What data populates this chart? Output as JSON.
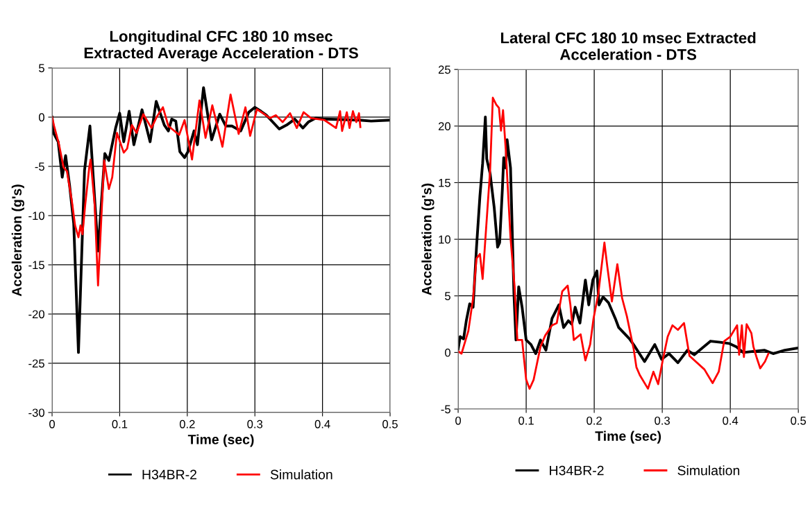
{
  "chart_data": [
    {
      "type": "line",
      "title": "Longitudinal CFC 180 10 msec\nExtracted Average Acceleration - DTS",
      "xlabel": "Time (sec)",
      "ylabel": "Acceleration (g's)",
      "xlim": [
        0,
        0.5
      ],
      "xticks": [
        0,
        0.1,
        0.2,
        0.3,
        0.4,
        0.5
      ],
      "ylim": [
        -30,
        5
      ],
      "yticks": [
        -30,
        -25,
        -20,
        -15,
        -10,
        -5,
        0,
        5
      ],
      "grid": true,
      "legend": "bottom",
      "marker": "none",
      "line_style": "solid",
      "series": [
        {
          "name": "H34BR-2",
          "color": "#000000",
          "x": [
            0,
            0.002,
            0.009,
            0.015,
            0.02,
            0.026,
            0.032,
            0.039,
            0.048,
            0.056,
            0.068,
            0.078,
            0.084,
            0.094,
            0.1,
            0.106,
            0.114,
            0.121,
            0.133,
            0.145,
            0.154,
            0.166,
            0.172,
            0.177,
            0.183,
            0.189,
            0.196,
            0.201,
            0.21,
            0.215,
            0.224,
            0.236,
            0.248,
            0.257,
            0.266,
            0.279,
            0.291,
            0.3,
            0.309,
            0.317,
            0.336,
            0.347,
            0.359,
            0.371,
            0.379,
            0.39,
            0.403,
            0.455,
            0.472,
            0.5
          ],
          "values": [
            0,
            -1.6,
            -2.5,
            -6.1,
            -3.9,
            -7.0,
            -10.8,
            -23.9,
            -5.4,
            -0.9,
            -13.6,
            -3.7,
            -4.4,
            -1.1,
            0.4,
            -2.5,
            0.6,
            -2.8,
            0.75,
            -2.5,
            1.6,
            -0.8,
            -1.4,
            -0.2,
            -0.4,
            -3.5,
            -4.1,
            -3.5,
            -1.4,
            -2.8,
            3.0,
            -2.3,
            0.3,
            -0.9,
            -0.9,
            -1.4,
            0.5,
            1.0,
            0.6,
            0.2,
            -1.2,
            -0.8,
            -0.2,
            -1.1,
            -0.5,
            -0.1,
            -0.2,
            -0.3,
            -0.4,
            -0.3
          ]
        },
        {
          "name": "Simulation",
          "color": "#ff0000",
          "x": [
            0,
            0.003,
            0.01,
            0.017,
            0.022,
            0.029,
            0.034,
            0.039,
            0.042,
            0.045,
            0.049,
            0.055,
            0.057,
            0.063,
            0.068,
            0.077,
            0.084,
            0.089,
            0.096,
            0.106,
            0.111,
            0.118,
            0.125,
            0.135,
            0.147,
            0.155,
            0.164,
            0.172,
            0.188,
            0.196,
            0.207,
            0.218,
            0.227,
            0.237,
            0.252,
            0.264,
            0.276,
            0.286,
            0.293,
            0.303,
            0.314,
            0.322,
            0.331,
            0.341,
            0.352,
            0.362,
            0.372,
            0.383,
            0.403,
            0.42,
            0.426,
            0.429,
            0.436,
            0.44,
            0.445,
            0.45,
            0.454,
            0.456
          ],
          "values": [
            0,
            -0.9,
            -2.7,
            -5.1,
            -5.5,
            -8.4,
            -11.0,
            -12.2,
            -11.0,
            -11.9,
            -8.9,
            -5.1,
            -4.3,
            -8.9,
            -17.1,
            -4.4,
            -7.3,
            -6.1,
            -1.6,
            -3.6,
            -3.2,
            -0.8,
            -1.6,
            0.3,
            -1.1,
            0.05,
            1.0,
            -0.9,
            -1.8,
            -0.3,
            -4.3,
            1.7,
            -2.1,
            1.2,
            -3.0,
            2.3,
            -1.7,
            1.0,
            -1.9,
            0.8,
            0.3,
            -0.1,
            0.2,
            -0.5,
            0.4,
            -1.1,
            0.5,
            -0.1,
            -0.3,
            -1.1,
            0.6,
            -1.4,
            0.5,
            -1.1,
            0.6,
            -0.5,
            0.4,
            -1.0
          ]
        }
      ]
    },
    {
      "type": "line",
      "title": "Lateral CFC 180 10 msec Extracted\nAcceleration - DTS",
      "xlabel": "Time (sec)",
      "ylabel": "Acceleration (g's)",
      "xlim": [
        0,
        0.5
      ],
      "xticks": [
        0,
        0.1,
        0.2,
        0.3,
        0.4,
        0.5
      ],
      "ylim": [
        -5,
        25
      ],
      "yticks": [
        -5,
        0,
        5,
        10,
        15,
        20,
        25
      ],
      "grid": true,
      "legend": "bottom",
      "marker": "none",
      "line_style": "solid",
      "series": [
        {
          "name": "H34BR-2",
          "color": "#000000",
          "x": [
            0,
            0.003,
            0.008,
            0.012,
            0.017,
            0.022,
            0.027,
            0.032,
            0.036,
            0.04,
            0.042,
            0.047,
            0.053,
            0.058,
            0.061,
            0.065,
            0.067,
            0.07,
            0.072,
            0.077,
            0.082,
            0.085,
            0.089,
            0.094,
            0.1,
            0.107,
            0.114,
            0.121,
            0.129,
            0.138,
            0.148,
            0.155,
            0.162,
            0.167,
            0.172,
            0.179,
            0.187,
            0.192,
            0.198,
            0.204,
            0.207,
            0.213,
            0.221,
            0.231,
            0.236,
            0.252,
            0.26,
            0.274,
            0.289,
            0.299,
            0.31,
            0.323,
            0.337,
            0.347,
            0.371,
            0.385,
            0.398,
            0.409,
            0.419,
            0.45,
            0.463,
            0.48,
            0.5
          ],
          "values": [
            0.3,
            1.4,
            1.2,
            2.8,
            4.3,
            4.0,
            9.3,
            13.8,
            16.7,
            20.8,
            17.1,
            15.8,
            12.8,
            9.3,
            9.7,
            14.4,
            17.2,
            16.3,
            18.8,
            16.3,
            5.2,
            1.1,
            5.8,
            4.0,
            1.1,
            0.7,
            -0.1,
            1.1,
            0.2,
            3.0,
            4.2,
            2.2,
            2.8,
            2.5,
            4.0,
            2.6,
            6.4,
            4.2,
            6.4,
            7.2,
            4.2,
            4.9,
            4.4,
            3.0,
            2.2,
            1.2,
            0.5,
            -0.8,
            0.7,
            -0.6,
            -0.1,
            -0.9,
            0.2,
            -0.2,
            1.0,
            0.9,
            0.8,
            0.5,
            0.0,
            0.2,
            -0.1,
            0.2,
            0.4
          ]
        },
        {
          "name": "Simulation",
          "color": "#ff0000",
          "x": [
            0,
            0.005,
            0.01,
            0.015,
            0.022,
            0.027,
            0.032,
            0.036,
            0.043,
            0.047,
            0.051,
            0.056,
            0.06,
            0.063,
            0.066,
            0.07,
            0.077,
            0.083,
            0.087,
            0.094,
            0.1,
            0.105,
            0.111,
            0.121,
            0.128,
            0.138,
            0.145,
            0.153,
            0.161,
            0.165,
            0.17,
            0.18,
            0.187,
            0.194,
            0.199,
            0.206,
            0.211,
            0.215,
            0.219,
            0.226,
            0.234,
            0.241,
            0.248,
            0.258,
            0.262,
            0.267,
            0.279,
            0.287,
            0.294,
            0.301,
            0.308,
            0.315,
            0.323,
            0.332,
            0.34,
            0.362,
            0.374,
            0.383,
            0.391,
            0.4,
            0.41,
            0.413,
            0.417,
            0.42,
            0.424,
            0.431,
            0.434,
            0.439,
            0.444,
            0.451,
            0.456
          ],
          "values": [
            0.1,
            -0.1,
            0.9,
            1.9,
            4.8,
            8.3,
            8.7,
            6.5,
            12.6,
            16.1,
            22.5,
            21.9,
            21.6,
            19.6,
            21.4,
            17.9,
            10.1,
            5.8,
            1.1,
            1.1,
            -2.4,
            -3.2,
            -2.4,
            0.5,
            1.5,
            2.4,
            2.6,
            5.4,
            5.9,
            4.2,
            1.1,
            1.6,
            -0.7,
            0.7,
            3.0,
            5.2,
            7.7,
            9.7,
            7.7,
            4.5,
            7.8,
            4.8,
            3.2,
            0.3,
            -1.3,
            -2.0,
            -3.2,
            -1.7,
            -2.8,
            -0.6,
            1.4,
            2.4,
            2.0,
            2.6,
            -0.3,
            -1.5,
            -2.7,
            -1.7,
            1.0,
            1.4,
            2.4,
            -0.2,
            2.4,
            -0.4,
            2.5,
            1.7,
            0.5,
            -0.5,
            -1.4,
            -0.8,
            -0.1
          ]
        }
      ]
    }
  ]
}
